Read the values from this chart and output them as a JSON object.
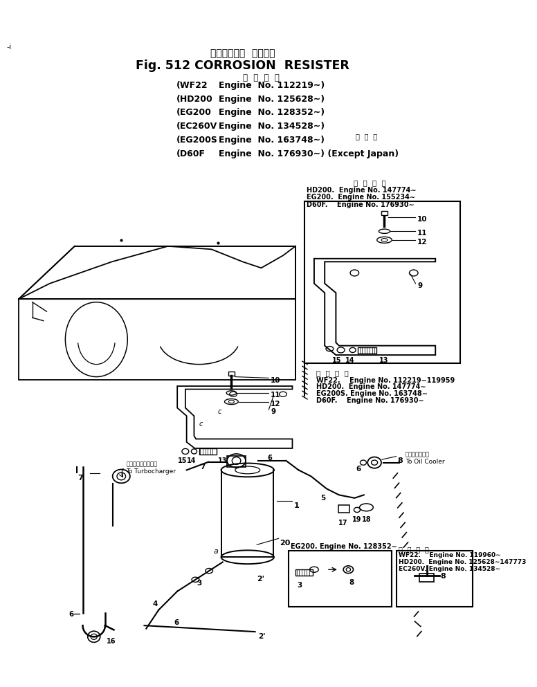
{
  "title_jp": "コロージョン  レジスタ",
  "title_en": "Fig. 512 CORROSION  RESISTER",
  "app_header": "適  用  号  機",
  "app_rows": [
    [
      "(WF22",
      "Engine  No. 112219∼)"
    ],
    [
      "(HD200",
      "Engine  No. 125628∼)"
    ],
    [
      "(EG200",
      "Engine  No. 128352∼)"
    ],
    [
      "(EC260V",
      "Engine  No. 134528∼)"
    ],
    [
      "(EG200S",
      "Engine  No. 163748∼)"
    ],
    [
      "(D60F",
      "Engine  No. 176930∼) (Except Japan)"
    ]
  ],
  "overseas": "海  外  向",
  "inset_top_header": "適  用  号  機",
  "inset_top_lines": [
    "HD200.  Engine No. 147774∼",
    "EG200.  Engine No. 155234∼",
    "D60F.    Engine No. 176930∼"
  ],
  "note_mid_header": "適  用  号  機",
  "note_mid_lines": [
    "WF22.    Engine No. 112219∼119959",
    "HD200.  Engine No. 147774∼",
    "EG200S. Engine No. 163748∼",
    "D60F.    Engine No. 176930∼"
  ],
  "eg200_note": "EG200. Engine No. 128352∼",
  "inset_bot_header": "適  用  号  機",
  "inset_bot_lines": [
    "WF22.    Engine No. 119960∼",
    "HD200.  Engine No. 125628∼147773",
    "EC260V. Engine No. 134528∼"
  ],
  "oil_cooler_jp": "オイルクーラヘ",
  "oil_cooler_en": "To Oil Cooler",
  "turbo_jp": "ターボチャージャヘ",
  "turbo_en": "To Turbocharger",
  "bg": "#ffffff",
  "lc": "#000000",
  "page_marker": "-i"
}
